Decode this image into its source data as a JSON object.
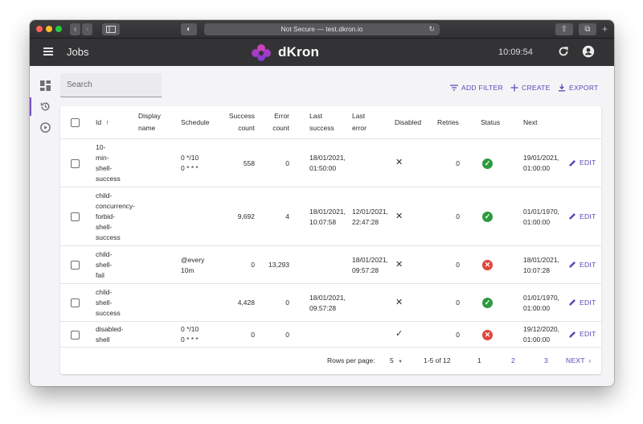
{
  "browser": {
    "url_text": "Not Secure — test.dkron.io"
  },
  "appbar": {
    "title": "Jobs",
    "logo_text": "dKron",
    "clock": "10:09:54"
  },
  "toolbar": {
    "search_label": "Search",
    "add_filter": "ADD FILTER",
    "create": "CREATE",
    "export": "EXPORT"
  },
  "table": {
    "headers": {
      "id": "Id",
      "display_name": [
        "Display",
        "name"
      ],
      "schedule": "Schedule",
      "success_count": [
        "Success",
        "count"
      ],
      "error_count": [
        "Error",
        "count"
      ],
      "last_success": [
        "Last",
        "success"
      ],
      "last_error": [
        "Last",
        "error"
      ],
      "disabled": "Disabled",
      "retries": "Retries",
      "status": "Status",
      "next": "Next"
    },
    "rows": [
      {
        "id": [
          "10-",
          "min-",
          "shell-",
          "success"
        ],
        "schedule": [
          "0 */10",
          "0 * * *"
        ],
        "success_count": "558",
        "error_count": "0",
        "last_success": [
          "18/01/2021,",
          "01:50:00"
        ],
        "last_error": [],
        "disabled": "✕",
        "retries": "0",
        "status": "ok",
        "next": [
          "19/01/2021,",
          "01:00:00"
        ],
        "edit": "EDIT"
      },
      {
        "id": [
          "child-",
          "concurrency-",
          "forbid-",
          "shell-",
          "success"
        ],
        "schedule": [],
        "success_count": "9,692",
        "error_count": "4",
        "last_success": [
          "18/01/2021,",
          "10:07:58"
        ],
        "last_error": [
          "12/01/2021,",
          "22:47:28"
        ],
        "disabled": "✕",
        "retries": "0",
        "status": "ok",
        "next": [
          "01/01/1970,",
          "01:00:00"
        ],
        "edit": "EDIT"
      },
      {
        "id": [
          "child-",
          "shell-",
          "fail"
        ],
        "schedule": [
          "@every",
          "10m"
        ],
        "success_count": "0",
        "error_count": "13,293",
        "last_success": [],
        "last_error": [
          "18/01/2021,",
          "09:57:28"
        ],
        "disabled": "✕",
        "retries": "0",
        "status": "fail",
        "next": [
          "18/01/2021,",
          "10:07:28"
        ],
        "edit": "EDIT"
      },
      {
        "id": [
          "child-",
          "shell-",
          "success"
        ],
        "schedule": [],
        "success_count": "4,428",
        "error_count": "0",
        "last_success": [
          "18/01/2021,",
          "09:57:28"
        ],
        "last_error": [],
        "disabled": "✕",
        "retries": "0",
        "status": "ok",
        "next": [
          "01/01/1970,",
          "01:00:00"
        ],
        "edit": "EDIT"
      },
      {
        "id": [
          "disabled-",
          "shell"
        ],
        "schedule": [
          "0 */10",
          "0 * * *"
        ],
        "success_count": "0",
        "error_count": "0",
        "last_success": [],
        "last_error": [],
        "disabled": "✓",
        "retries": "0",
        "status": "fail",
        "next": [
          "19/12/2020,",
          "01:00:00"
        ],
        "edit": "EDIT"
      }
    ]
  },
  "pagination": {
    "rows_per_page_label": "Rows per page:",
    "rows_per_page": "5",
    "range": "1-5 of 12",
    "pages": [
      "1",
      "2",
      "3"
    ],
    "next": "NEXT"
  },
  "colors": {
    "accent": "#5b43b8",
    "success": "#2e9a3f",
    "error": "#e0463a",
    "appbar": "#333336"
  }
}
